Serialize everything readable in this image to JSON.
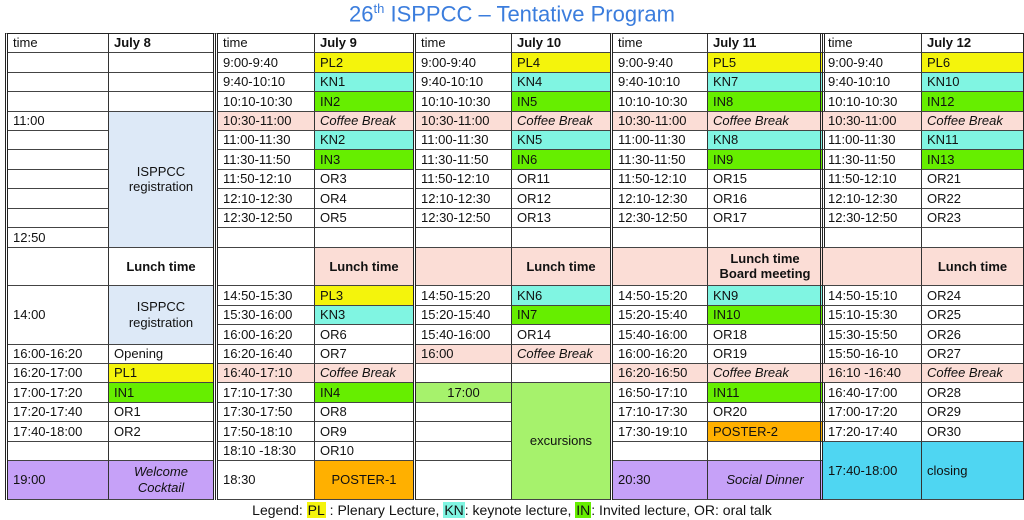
{
  "title": {
    "prefix": "26",
    "sup": "th",
    "rest": " ISPPCC – Tentative Program",
    "color": "#3b7ddd"
  },
  "colors": {
    "plenary": "#f4f40c",
    "keynote": "#80f5e2",
    "invited": "#66ee00",
    "coffee": "#fbddd6",
    "registration": "#dde9f7",
    "poster": "#ffb000",
    "social": "#c6a1f8",
    "excursion": "#a6f26c",
    "closing": "#4fd6f2"
  },
  "days": [
    {
      "time_header": "time",
      "day": "July 8",
      "time_cells": [
        {
          "text": ""
        },
        {
          "text": ""
        },
        {
          "text": ""
        },
        {
          "text": "11:00"
        },
        {
          "text": ""
        },
        {
          "text": ""
        },
        {
          "text": ""
        },
        {
          "text": ""
        },
        {
          "text": ""
        },
        {
          "text": "12:50"
        },
        {
          "text": ""
        },
        {
          "text": "14:00"
        },
        {
          "text": "16:00-16:20"
        },
        {
          "text": "16:20-17:00"
        },
        {
          "text": "17:00-17:20"
        },
        {
          "text": "17:20-17:40"
        },
        {
          "text": "17:40-18:00"
        },
        {
          "text": ""
        },
        {
          "text": "19:00",
          "kind": "purple"
        }
      ],
      "session_cells": [
        {
          "text": ""
        },
        {
          "text": ""
        },
        {
          "text": ""
        },
        {
          "text": "ISPPCC registration",
          "kind": "reg"
        },
        {
          "text": "Lunch time",
          "kind": "lunchw"
        },
        {
          "text": "ISPPCC registration",
          "kind": "reg"
        },
        {
          "text": "Opening"
        },
        {
          "text": "PL1",
          "kind": "pl"
        },
        {
          "text": "IN1",
          "kind": "in"
        },
        {
          "text": "OR1"
        },
        {
          "text": "OR2"
        },
        {
          "text": ""
        },
        {
          "text": "Welcome Cocktail",
          "kind": "social"
        }
      ]
    },
    {
      "time_header": "time",
      "day": "July 9",
      "time_cells": [
        {
          "text": "9:00-9:40"
        },
        {
          "text": "9:40-10:10"
        },
        {
          "text": "10:10-10:30"
        },
        {
          "text": "10:30-11:00",
          "kind": "pink"
        },
        {
          "text": "11:00-11:30"
        },
        {
          "text": "11:30-11:50"
        },
        {
          "text": "11:50-12:10"
        },
        {
          "text": "12:10-12:30"
        },
        {
          "text": "12:30-12:50"
        },
        {
          "text": ""
        },
        {
          "text": ""
        },
        {
          "text": "14:50-15:30"
        },
        {
          "text": "15:30-16:00"
        },
        {
          "text": "16:00-16:20"
        },
        {
          "text": "16:20-16:40"
        },
        {
          "text": "16:40-17:10",
          "kind": "pink"
        },
        {
          "text": "17:10-17:30"
        },
        {
          "text": "17:30-17:50"
        },
        {
          "text": "17:50-18:10"
        },
        {
          "text": "18:10 -18:30"
        },
        {
          "text": "18:30"
        }
      ],
      "session_cells": [
        {
          "text": "PL2",
          "kind": "pl"
        },
        {
          "text": "KN1",
          "kind": "kn"
        },
        {
          "text": "IN2",
          "kind": "in"
        },
        {
          "text": "Coffee Break",
          "kind": "coffee"
        },
        {
          "text": "KN2",
          "kind": "kn"
        },
        {
          "text": "IN3",
          "kind": "in"
        },
        {
          "text": "OR3"
        },
        {
          "text": "OR4"
        },
        {
          "text": "OR5"
        },
        {
          "text": ""
        },
        {
          "text": "Lunch time",
          "kind": "lunch"
        },
        {
          "text": "PL3",
          "kind": "pl"
        },
        {
          "text": "KN3",
          "kind": "kn"
        },
        {
          "text": "OR6"
        },
        {
          "text": "OR7"
        },
        {
          "text": "Coffee Break",
          "kind": "coffee"
        },
        {
          "text": "IN4",
          "kind": "in"
        },
        {
          "text": "OR8"
        },
        {
          "text": "OR9"
        },
        {
          "text": "OR10"
        },
        {
          "text": "POSTER-1",
          "kind": "poster"
        }
      ]
    },
    {
      "time_header": "time",
      "day": "July 10",
      "time_cells": [
        {
          "text": "9:00-9:40"
        },
        {
          "text": "9:40-10:10"
        },
        {
          "text": "10:10-10:30"
        },
        {
          "text": "10:30-11:00",
          "kind": "pink"
        },
        {
          "text": "11:00-11:30"
        },
        {
          "text": "11:30-11:50"
        },
        {
          "text": "11:50-12:10"
        },
        {
          "text": "12:10-12:30"
        },
        {
          "text": "12:30-12:50"
        },
        {
          "text": ""
        },
        {
          "text": "",
          "kind": "pink"
        },
        {
          "text": "14:50-15:20"
        },
        {
          "text": "15:20-15:40"
        },
        {
          "text": "15:40-16:00"
        },
        {
          "text": "16:00",
          "kind": "pink"
        },
        {
          "text": ""
        },
        {
          "text": "17:00",
          "kind": "exc"
        },
        {
          "text": ""
        },
        {
          "text": ""
        },
        {
          "text": ""
        },
        {
          "text": ""
        }
      ],
      "session_cells": [
        {
          "text": "PL4",
          "kind": "pl"
        },
        {
          "text": "KN4",
          "kind": "kn"
        },
        {
          "text": "IN5",
          "kind": "in"
        },
        {
          "text": "Coffee Break",
          "kind": "coffee"
        },
        {
          "text": "KN5",
          "kind": "kn"
        },
        {
          "text": "IN6",
          "kind": "in"
        },
        {
          "text": "OR11"
        },
        {
          "text": "OR12"
        },
        {
          "text": "OR13"
        },
        {
          "text": ""
        },
        {
          "text": "Lunch time",
          "kind": "lunch"
        },
        {
          "text": "KN6",
          "kind": "kn"
        },
        {
          "text": "IN7",
          "kind": "in"
        },
        {
          "text": "OR14"
        },
        {
          "text": "Coffee Break",
          "kind": "coffee"
        },
        {
          "text": ""
        },
        {
          "text": "excursions",
          "kind": "exc"
        }
      ]
    },
    {
      "time_header": "time",
      "day": "July 11",
      "time_cells": [
        {
          "text": "9:00-9:40"
        },
        {
          "text": "9:40-10:10"
        },
        {
          "text": "10:10-10:30"
        },
        {
          "text": "10:30-11:00",
          "kind": "pink"
        },
        {
          "text": "11:00-11:30"
        },
        {
          "text": "11:30-11:50"
        },
        {
          "text": "11:50-12:10"
        },
        {
          "text": "12:10-12:30"
        },
        {
          "text": "12:30-12:50"
        },
        {
          "text": ""
        },
        {
          "text": "",
          "kind": "pink"
        },
        {
          "text": "14:50-15:20"
        },
        {
          "text": "15:20-15:40"
        },
        {
          "text": "15:40-16:00"
        },
        {
          "text": "16:00-16:20"
        },
        {
          "text": "16:20-16:50",
          "kind": "pink"
        },
        {
          "text": "16:50-17:10"
        },
        {
          "text": "17:10-17:30"
        },
        {
          "text": "17:30-19:10"
        },
        {
          "text": ""
        },
        {
          "text": "20:30",
          "kind": "purple"
        }
      ],
      "session_cells": [
        {
          "text": "PL5",
          "kind": "pl"
        },
        {
          "text": "KN7",
          "kind": "kn"
        },
        {
          "text": "IN8",
          "kind": "in"
        },
        {
          "text": "Coffee Break",
          "kind": "coffee"
        },
        {
          "text": "KN8",
          "kind": "kn"
        },
        {
          "text": "IN9",
          "kind": "in"
        },
        {
          "text": "OR15"
        },
        {
          "text": "OR16"
        },
        {
          "text": "OR17"
        },
        {
          "text": ""
        },
        {
          "text": "Lunch time Board meeting",
          "kind": "lunch"
        },
        {
          "text": "KN9",
          "kind": "kn"
        },
        {
          "text": "IN10",
          "kind": "in"
        },
        {
          "text": "OR18"
        },
        {
          "text": "OR19"
        },
        {
          "text": "Coffee Break",
          "kind": "coffee"
        },
        {
          "text": "IN11",
          "kind": "in"
        },
        {
          "text": "OR20"
        },
        {
          "text": "POSTER-2",
          "kind": "poster"
        },
        {
          "text": ""
        },
        {
          "text": "Social Dinner",
          "kind": "social"
        }
      ]
    },
    {
      "time_header": "time",
      "day": "July 12",
      "time_cells": [
        {
          "text": "9:00-9:40"
        },
        {
          "text": "9:40-10:10"
        },
        {
          "text": "10:10-10:30"
        },
        {
          "text": "10:30-11:00",
          "kind": "pink"
        },
        {
          "text": "11:00-11:30"
        },
        {
          "text": "11:30-11:50"
        },
        {
          "text": "11:50-12:10"
        },
        {
          "text": "12:10-12:30"
        },
        {
          "text": "12:30-12:50"
        },
        {
          "text": ""
        },
        {
          "text": "",
          "kind": "pink"
        },
        {
          "text": "14:50-15:10"
        },
        {
          "text": "15:10-15:30"
        },
        {
          "text": "15:30-15:50"
        },
        {
          "text": "15:50-16-10"
        },
        {
          "text": "16:10 -16:40",
          "kind": "pink"
        },
        {
          "text": "16:40-17:00"
        },
        {
          "text": "17:00-17:20"
        },
        {
          "text": "17:20-17:40"
        },
        {
          "text": "17:40-18:00",
          "kind": "closing"
        }
      ],
      "session_cells": [
        {
          "text": "PL6",
          "kind": "pl"
        },
        {
          "text": "KN10",
          "kind": "kn"
        },
        {
          "text": "IN12",
          "kind": "in"
        },
        {
          "text": "Coffee Break",
          "kind": "coffee"
        },
        {
          "text": "KN11",
          "kind": "kn"
        },
        {
          "text": "IN13",
          "kind": "in"
        },
        {
          "text": "OR21"
        },
        {
          "text": "OR22"
        },
        {
          "text": "OR23"
        },
        {
          "text": ""
        },
        {
          "text": "Lunch time",
          "kind": "lunch"
        },
        {
          "text": "OR24"
        },
        {
          "text": "OR25"
        },
        {
          "text": "OR26"
        },
        {
          "text": "OR27"
        },
        {
          "text": "Coffee Break",
          "kind": "coffee"
        },
        {
          "text": "OR28"
        },
        {
          "text": "OR29"
        },
        {
          "text": "OR30"
        },
        {
          "text": "closing",
          "kind": "closing"
        }
      ]
    }
  ],
  "legend": {
    "label": "Legend: ",
    "pl": "PL",
    "pl_desc": " : Plenary Lecture,  ",
    "kn": "KN",
    "kn_desc": ": keynote lecture,  ",
    "in": "IN",
    "in_desc": ": Invited lecture, OR: oral talk"
  }
}
